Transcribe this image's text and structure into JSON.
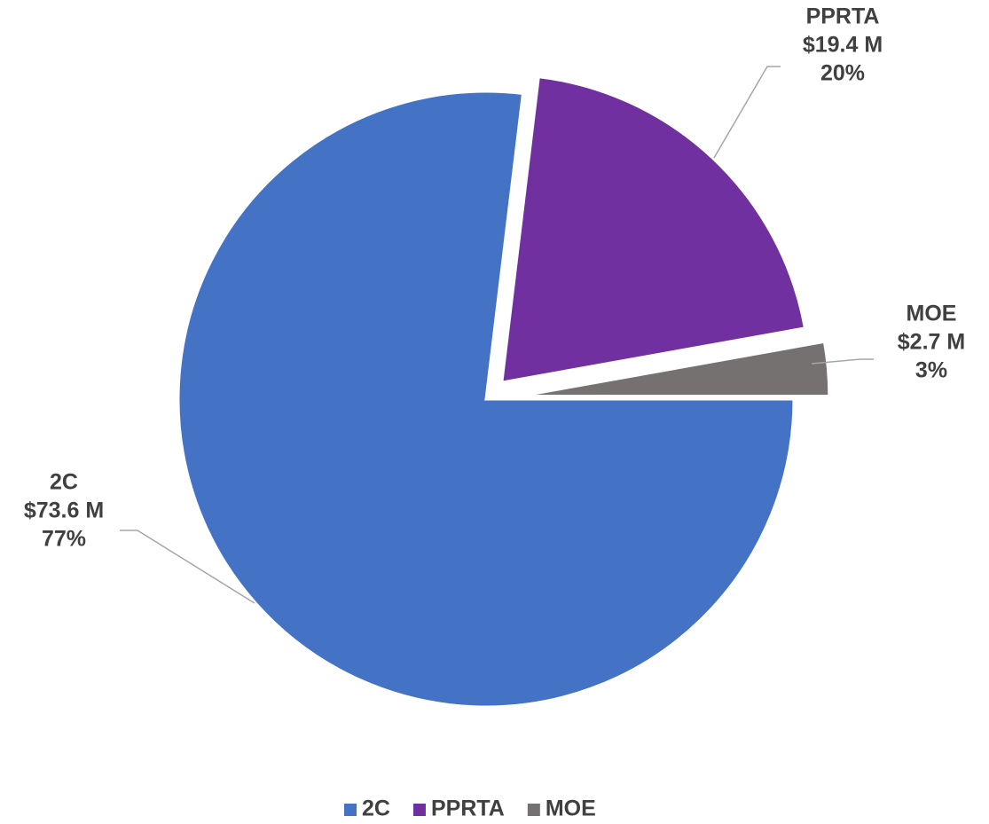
{
  "chart_data": {
    "type": "pie",
    "categories": [
      "2C",
      "PPRTA",
      "MOE"
    ],
    "values": [
      73.6,
      19.4,
      2.7
    ],
    "value_labels": [
      "$73.6 M",
      "$19.4 M",
      "$2.7 M"
    ],
    "percent_labels": [
      "77%",
      "20%",
      "3%"
    ],
    "colors": [
      "#4472c4",
      "#7030a0",
      "#767171"
    ],
    "legend": "bottom"
  }
}
